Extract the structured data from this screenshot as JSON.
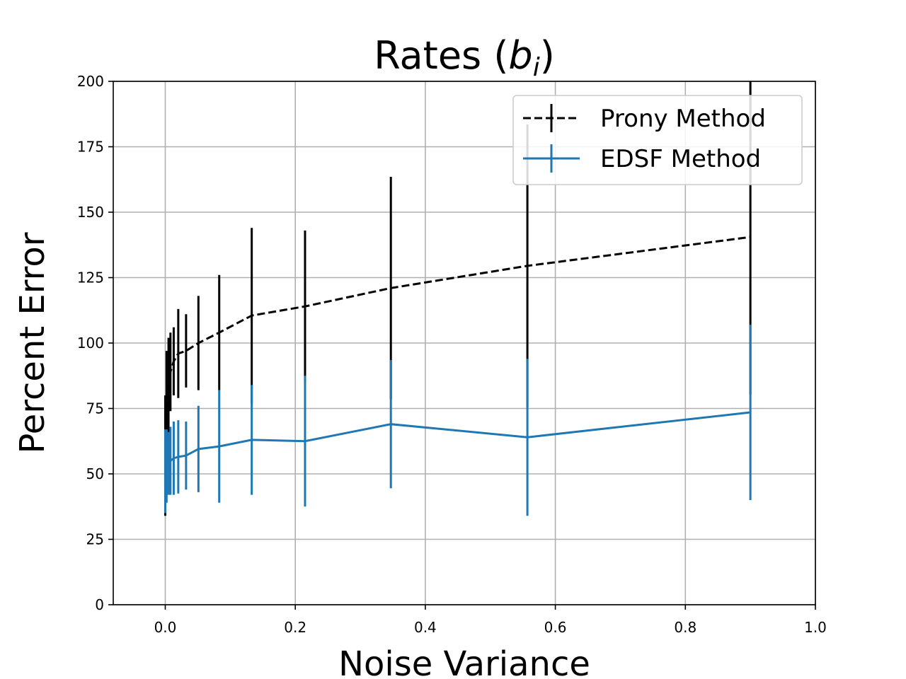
{
  "chart_data": {
    "type": "line",
    "title": "Rates (",
    "title_math": "b",
    "title_math_sub": "i",
    "title_end": ")",
    "xlabel": "Noise Variance",
    "ylabel": "Percent Error",
    "xlim": [
      -0.08,
      1.0
    ],
    "ylim": [
      0,
      200
    ],
    "xticks": [
      0.0,
      0.2,
      0.4,
      0.6,
      0.8,
      1.0
    ],
    "xtick_labels": [
      "0.0",
      "0.2",
      "0.4",
      "0.6",
      "0.8",
      "1.0"
    ],
    "yticks": [
      0,
      25,
      50,
      75,
      100,
      125,
      150,
      175,
      200
    ],
    "ytick_labels": [
      "0",
      "25",
      "50",
      "75",
      "100",
      "125",
      "150",
      "175",
      "200"
    ],
    "grid": true,
    "legend_position": "top-right",
    "x": [
      0.0,
      0.002,
      0.005,
      0.008,
      0.013,
      0.02,
      0.032,
      0.051,
      0.083,
      0.133,
      0.215,
      0.347,
      0.557,
      0.9
    ],
    "series": [
      {
        "name": "Prony Method",
        "color": "#000000",
        "dashed": true,
        "values": [
          57,
          75,
          83,
          89,
          93,
          96,
          97,
          100,
          104,
          110.5,
          114,
          121,
          129.5,
          140.5
        ],
        "errors": [
          23,
          22,
          19,
          15,
          13,
          17,
          14,
          18,
          22,
          33.5,
          29,
          42.5,
          54,
          60
        ]
      },
      {
        "name": "EDSF Method",
        "color": "#1f77b4",
        "dashed": false,
        "values": [
          51,
          53,
          54,
          55,
          56,
          56.5,
          57,
          59.5,
          60.5,
          63,
          62.5,
          69,
          64,
          73.5
        ],
        "errors": [
          16,
          14,
          12,
          13,
          14,
          14,
          13,
          16.5,
          21.5,
          21,
          25,
          24.5,
          30,
          33.5
        ]
      }
    ]
  }
}
